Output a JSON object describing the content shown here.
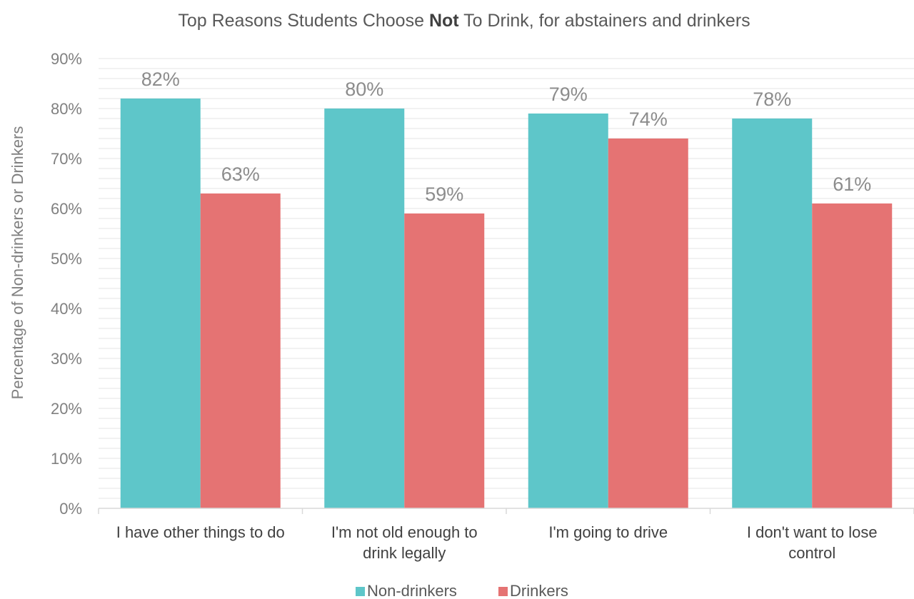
{
  "chart_data": {
    "type": "bar",
    "title": {
      "before": "Top Reasons Students Choose ",
      "bold": "Not",
      "after": " To Drink, for abstainers and drinkers"
    },
    "ylabel": "Percentage of Non-drinkers or Drinkers",
    "xlabel": "",
    "ylim": [
      0,
      90
    ],
    "yticks": [
      "0%",
      "10%",
      "20%",
      "30%",
      "40%",
      "50%",
      "60%",
      "70%",
      "80%",
      "90%"
    ],
    "grid": true,
    "legend_position": "bottom",
    "categories": [
      [
        "I have other things to do"
      ],
      [
        "I'm not old enough to",
        "drink legally"
      ],
      [
        "I'm going to drive"
      ],
      [
        "I don't want to lose",
        "control"
      ]
    ],
    "series": [
      {
        "name": "Non-drinkers",
        "color": "#5ec6c9",
        "values": [
          82,
          80,
          79,
          78
        ],
        "labels": [
          "82%",
          "80%",
          "79%",
          "78%"
        ]
      },
      {
        "name": "Drinkers",
        "color": "#e57373",
        "values": [
          63,
          59,
          74,
          61
        ],
        "labels": [
          "63%",
          "59%",
          "74%",
          "61%"
        ]
      }
    ]
  }
}
